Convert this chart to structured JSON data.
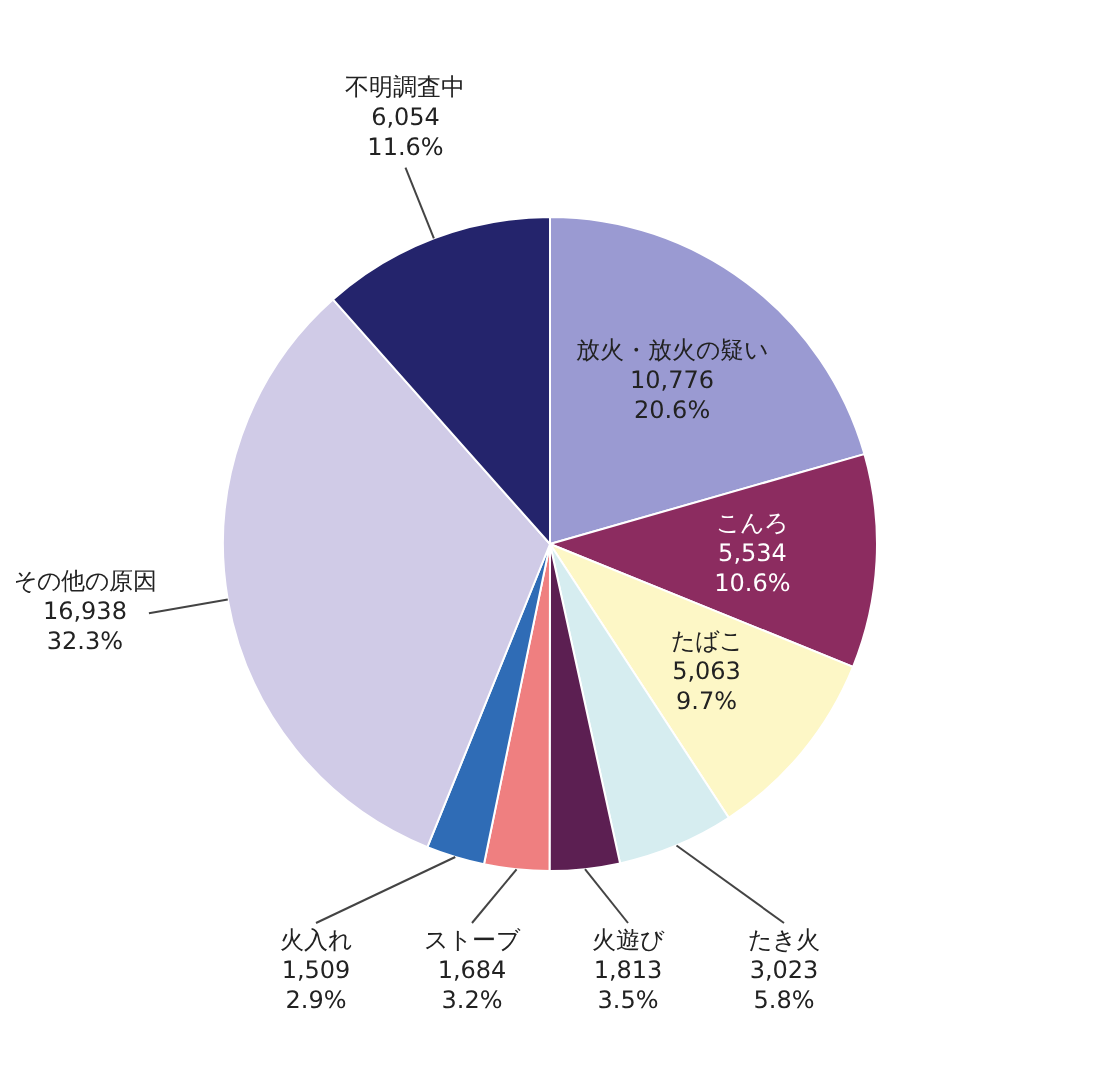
{
  "chart_data": {
    "type": "pie",
    "categories": [
      "放火・放火の疑い",
      "こんろ",
      "たばこ",
      "たき火",
      "火遊び",
      "ストーブ",
      "火入れ",
      "その他の原因",
      "不明調査中"
    ],
    "values": [
      10776,
      5534,
      5063,
      3023,
      1813,
      1684,
      1509,
      16938,
      6054
    ],
    "value_labels": [
      "10,776\n20.6%",
      "5,534\n10.6%",
      "5,063\n9.7%",
      "3,023\n5.8%",
      "1,813\n3.5%",
      "1,684\n3.2%",
      "1,509\n2.9%",
      "16,938\n32.3%",
      "6,054\n11.6%"
    ],
    "colors": [
      "#9a9ad2",
      "#8c2c60",
      "#fdf7c6",
      "#d6edf0",
      "#5c1f52",
      "#ef7f80",
      "#2f6cb6",
      "#d0cbe7",
      "#24246c"
    ],
    "legend": false
  }
}
